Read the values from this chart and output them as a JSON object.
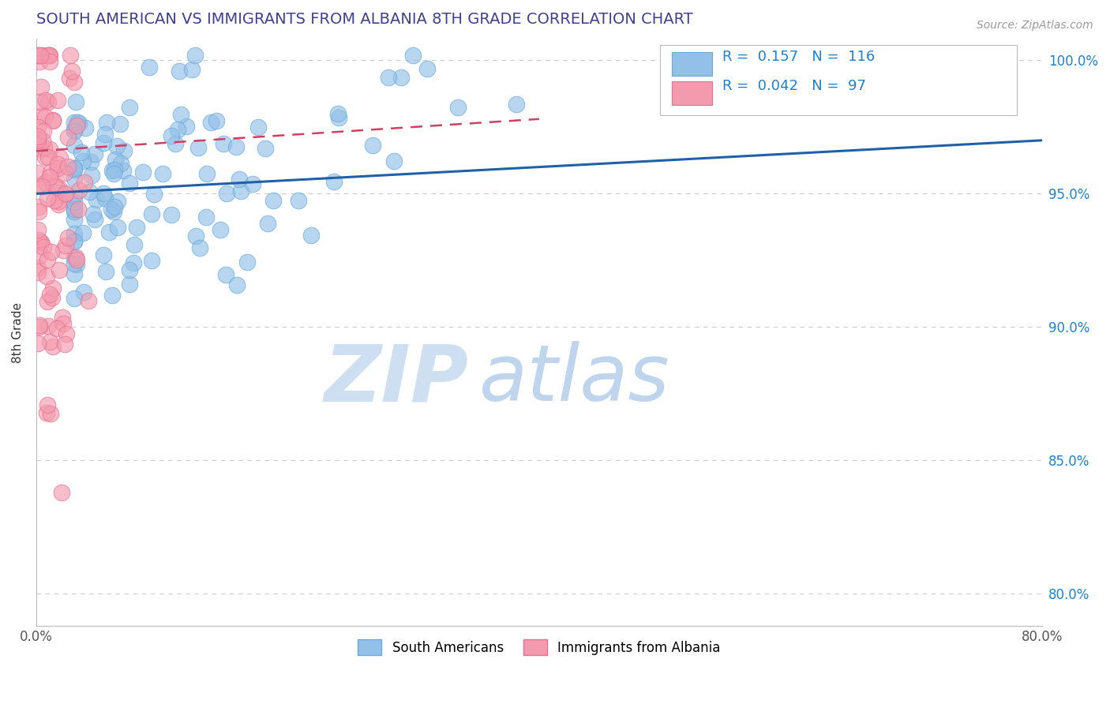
{
  "title": "SOUTH AMERICAN VS IMMIGRANTS FROM ALBANIA 8TH GRADE CORRELATION CHART",
  "source": "Source: ZipAtlas.com",
  "ylabel": "8th Grade",
  "xlim": [
    0.0,
    0.8
  ],
  "ylim": [
    0.788,
    1.008
  ],
  "yticks": [
    0.8,
    0.85,
    0.9,
    0.95,
    1.0
  ],
  "ytick_labels": [
    "80.0%",
    "85.0%",
    "90.0%",
    "95.0%",
    "100.0%"
  ],
  "xticks": [
    0.0,
    0.2,
    0.4,
    0.6,
    0.8
  ],
  "xtick_labels": [
    "0.0%",
    "",
    "",
    "",
    "80.0%"
  ],
  "blue_R": 0.157,
  "blue_N": 116,
  "pink_R": 0.042,
  "pink_N": 97,
  "blue_color": "#92C0E8",
  "pink_color": "#F49AAE",
  "blue_edge_color": "#6AAAD8",
  "pink_edge_color": "#E87090",
  "blue_line_color": "#2060A8",
  "pink_line_color": "#D04060",
  "title_color": "#404090",
  "rn_color": "#2080CC",
  "rn_label_color": "#101010",
  "watermark_zip_color": "#C8DCF0",
  "watermark_atlas_color": "#B8D0EC",
  "grid_color": "#CCCCCC",
  "source_color": "#999999",
  "blue_line_x": [
    0.0,
    0.8
  ],
  "blue_line_y": [
    0.95,
    0.97
  ],
  "pink_line_x": [
    0.0,
    0.4
  ],
  "pink_line_y": [
    0.966,
    0.978
  ]
}
